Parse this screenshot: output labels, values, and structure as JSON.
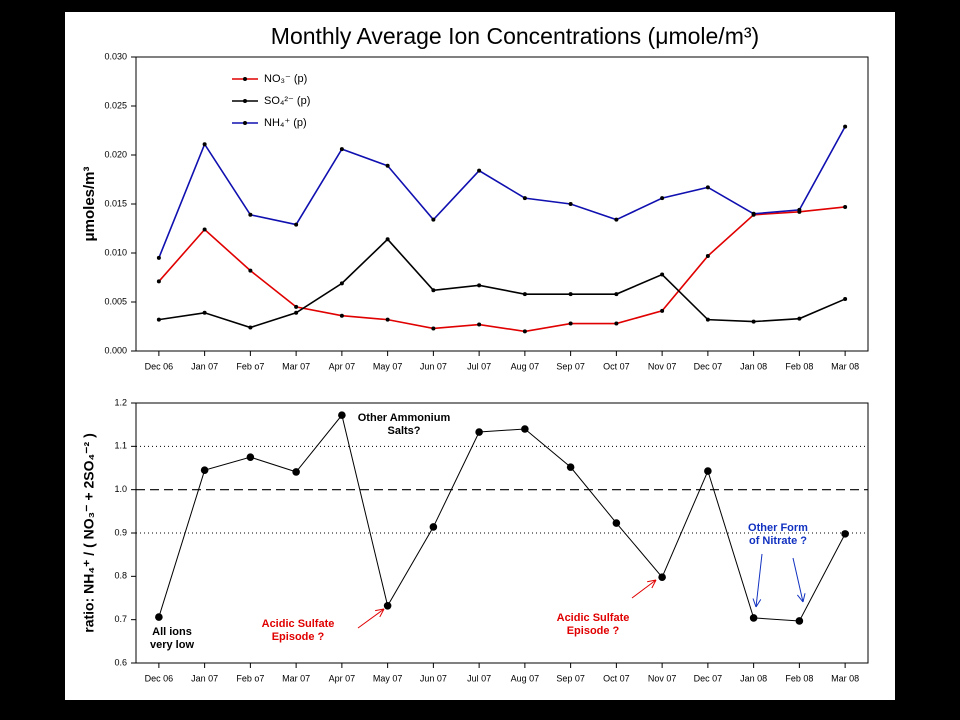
{
  "chart_data": [
    {
      "type": "line",
      "title": "Monthly Average Ion Concentrations (μmole/m³)",
      "ylabel": "μmoles/m³",
      "categories": [
        "Dec 06",
        "Jan 07",
        "Feb o7",
        "Mar 07",
        "Apr 07",
        "May 07",
        "Jun 07",
        "Jul 07",
        "Aug 07",
        "Sep 07",
        "Oct 07",
        "Nov 07",
        "Dec 07",
        "Jan 08",
        "Feb 08",
        "Mar 08"
      ],
      "series": [
        {
          "name": "NO₃⁻ (p)",
          "color": "#e00000",
          "values": [
            0.0071,
            0.0124,
            0.0082,
            0.0045,
            0.0036,
            0.0032,
            0.0023,
            0.0027,
            0.002,
            0.0028,
            0.0028,
            0.0041,
            0.0097,
            0.0139,
            0.0142,
            0.0147
          ]
        },
        {
          "name": "SO₄²⁻ (p)",
          "color": "#000000",
          "values": [
            0.0032,
            0.0039,
            0.0024,
            0.0039,
            0.0069,
            0.0114,
            0.0062,
            0.0067,
            0.0058,
            0.0058,
            0.0058,
            0.0078,
            0.0032,
            0.003,
            0.0033,
            0.0053
          ]
        },
        {
          "name": "NH₄⁺ (p)",
          "color": "#1010b0",
          "values": [
            0.0095,
            0.0211,
            0.0139,
            0.0129,
            0.0206,
            0.0189,
            0.0134,
            0.0184,
            0.0156,
            0.015,
            0.0134,
            0.0156,
            0.0167,
            0.014,
            0.0144,
            0.0229
          ]
        }
      ],
      "ylim": [
        0,
        0.03
      ],
      "yticks": [
        {
          "value": 0,
          "label": "0.000"
        },
        0.005,
        {
          "value": 0.01,
          "label": "0.010"
        },
        0.015,
        {
          "value": 0.02,
          "label": "0.020"
        },
        0.025,
        {
          "value": 0.03,
          "label": "0.030"
        }
      ],
      "legend": "upper left"
    },
    {
      "type": "line",
      "ylabel": "ratio: NH₄⁺ / ( NO₃⁻ + 2SO₄⁻² )",
      "categories": [
        "Dec 06",
        "Jan 07",
        "Feb o7",
        "Mar 07",
        "Apr 07",
        "May 07",
        "Jun 07",
        "Jul 07",
        "Aug 07",
        "Sep 07",
        "Oct 07",
        "Nov 07",
        "Dec 07",
        "Jan 08",
        "Feb 08",
        "Mar 08"
      ],
      "series": [
        {
          "color": "#000000",
          "values": [
            0.706,
            1.045,
            1.075,
            1.041,
            1.172,
            0.732,
            0.914,
            1.133,
            1.14,
            1.052,
            0.923,
            0.798,
            1.043,
            0.704,
            0.697,
            0.898
          ]
        }
      ],
      "ylim": [
        0.6,
        1.2
      ],
      "yticks": [
        0.6,
        0.7,
        0.8,
        0.9,
        {
          "value": 1,
          "label": "1.0"
        },
        1.1,
        1.2
      ],
      "hlines": [
        {
          "y": 1.1,
          "style": "dotted"
        },
        {
          "y": 1,
          "style": "dashed"
        },
        {
          "y": 0.9,
          "style": "dotted"
        }
      ],
      "annotations": [
        {
          "text": [
            "All ions",
            "very low"
          ],
          "color": "#000000"
        },
        {
          "text": [
            "Other Ammonium",
            "Salts?"
          ],
          "color": "#000000"
        },
        {
          "text": [
            "Acidic Sulfate",
            "Episode ?"
          ],
          "color": "#e00000"
        },
        {
          "text": [
            "Acidic Sulfate",
            "Episode ?"
          ],
          "color": "#e00000"
        },
        {
          "text": [
            "Other Form",
            "of Nitrate ?"
          ],
          "color": "#1030c0"
        }
      ]
    }
  ]
}
